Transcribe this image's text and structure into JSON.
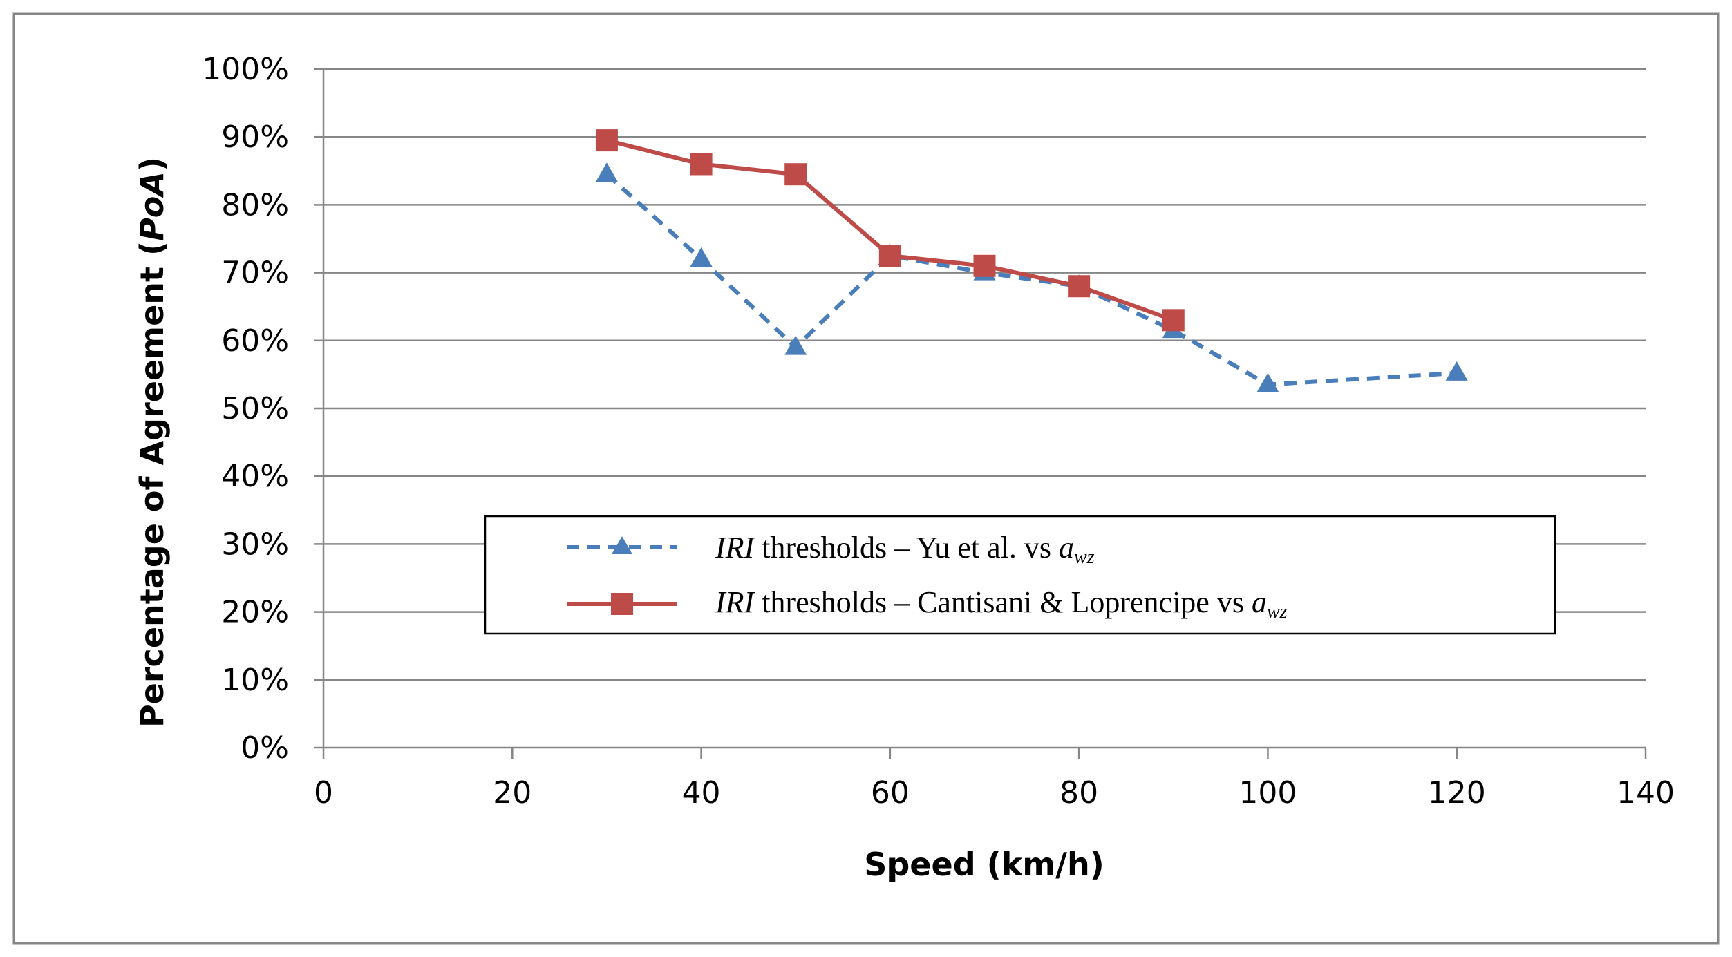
{
  "chart_data": {
    "type": "line",
    "title": "",
    "xlabel": "Speed (km/h)",
    "ylabel_parts": {
      "before": "Percentage of Agreement (",
      "italic": "PoA",
      "after": ")"
    },
    "xlim": [
      0,
      140
    ],
    "ylim": [
      0,
      100
    ],
    "xticks": [
      0,
      20,
      40,
      60,
      80,
      100,
      120,
      140
    ],
    "yticks": [
      0,
      10,
      20,
      30,
      40,
      50,
      60,
      70,
      80,
      90,
      100
    ],
    "ytick_suffix": "%",
    "grid": "horizontal",
    "legend_position": "center-bottom",
    "series": [
      {
        "name": "IRI thresholds – Yu et al. vs awz",
        "legend_parts": {
          "iri": "IRI",
          "text": " thresholds – Yu et al. vs ",
          "a": "a",
          "sub": "wz"
        },
        "color": "#4a7ebb",
        "line_style": "dashed",
        "marker": "triangle",
        "x": [
          30,
          40,
          50,
          60,
          70,
          80,
          90,
          100,
          120
        ],
        "y": [
          84.5,
          72,
          59,
          72.5,
          70,
          68,
          61.5,
          53.5,
          55.2
        ]
      },
      {
        "name": "IRI thresholds – Cantisani & Loprencipe vs awz",
        "legend_parts": {
          "iri": "IRI",
          "text": " thresholds – Cantisani & Loprencipe vs ",
          "a": "a",
          "sub": "wz"
        },
        "color": "#be4b48",
        "line_style": "solid",
        "marker": "square",
        "x": [
          30,
          40,
          50,
          60,
          70,
          80,
          90
        ],
        "y": [
          89.5,
          86,
          84.5,
          72.5,
          71,
          68,
          63
        ]
      }
    ]
  }
}
